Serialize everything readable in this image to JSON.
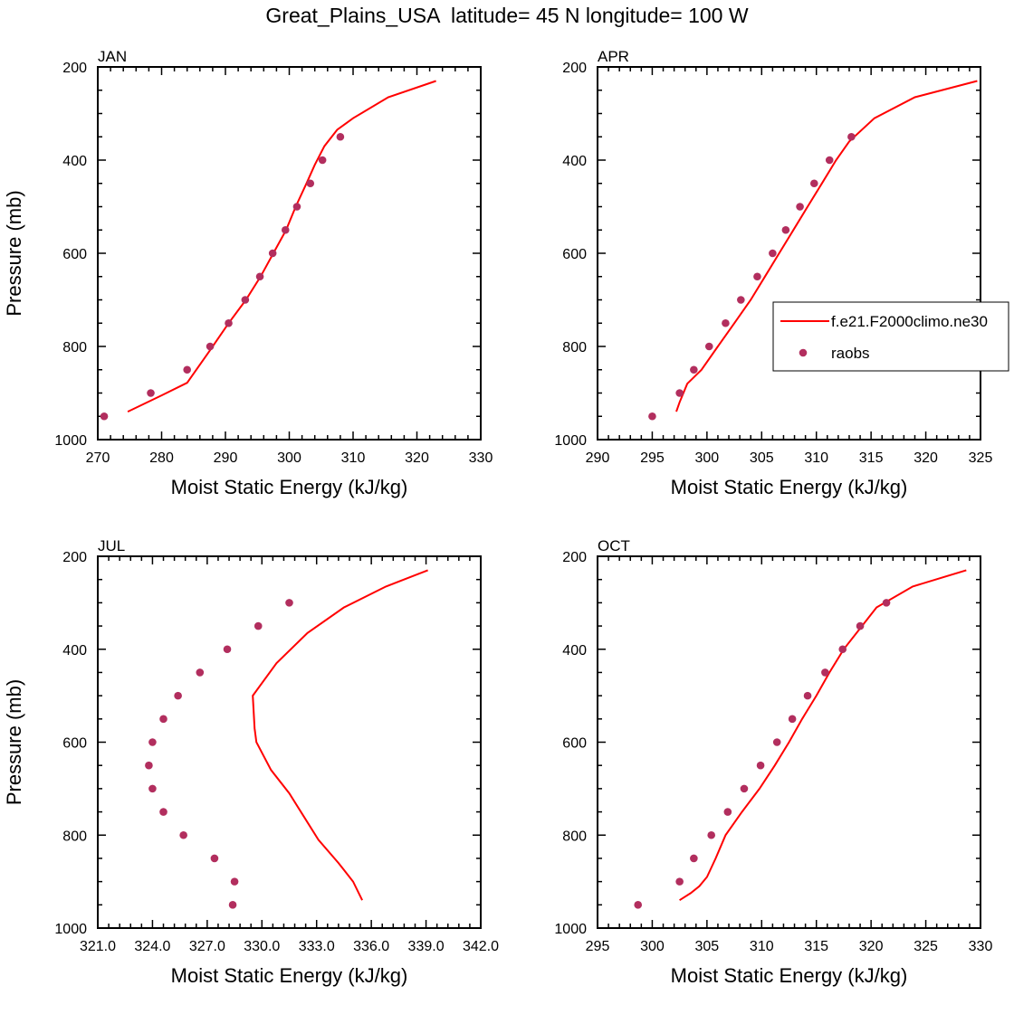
{
  "title": "Great_Plains_USA  latitude= 45 N longitude= 100 W",
  "colors": {
    "model_line": "#ff0000",
    "obs_marker": "#b22e5e",
    "axis": "#000000"
  },
  "legend": {
    "model_label": "f.e21.F2000climo.ne30",
    "obs_label": "raobs",
    "panel": "APR"
  },
  "chart_data": [
    {
      "type": "line",
      "panel": "JAN",
      "xlabel": "Moist Static Energy (kJ/kg)",
      "ylabel": "Pressure (mb)",
      "xlim": [
        270,
        330
      ],
      "ylim": [
        1000,
        200
      ],
      "xticks": [
        270,
        280,
        290,
        300,
        310,
        320,
        330
      ],
      "xtick_labels": [
        "270",
        "280",
        "290",
        "300",
        "310",
        "320",
        "330"
      ],
      "yticks": [
        200,
        400,
        600,
        800,
        1000
      ],
      "ytick_labels": [
        "200",
        "400",
        "600",
        "800",
        "1000"
      ],
      "series": [
        {
          "name": "f.e21.F2000climo.ne30",
          "kind": "line",
          "points": [
            [
              274.7,
              940
            ],
            [
              280,
              905
            ],
            [
              284,
              878
            ],
            [
              287.5,
              810
            ],
            [
              290.5,
              750
            ],
            [
              293.2,
              700
            ],
            [
              295.5,
              650
            ],
            [
              297.5,
              600
            ],
            [
              299.5,
              550
            ],
            [
              301,
              500
            ],
            [
              302.7,
              450
            ],
            [
              304,
              410
            ],
            [
              305.5,
              370
            ],
            [
              307.5,
              335
            ],
            [
              310,
              310
            ],
            [
              315.5,
              265
            ],
            [
              323,
              230
            ]
          ]
        },
        {
          "name": "raobs",
          "kind": "scatter",
          "points": [
            [
              271,
              950
            ],
            [
              278.3,
              900
            ],
            [
              284,
              850
            ],
            [
              287.6,
              800
            ],
            [
              290.5,
              750
            ],
            [
              293.1,
              700
            ],
            [
              295.4,
              650
            ],
            [
              297.4,
              600
            ],
            [
              299.4,
              550
            ],
            [
              301.2,
              500
            ],
            [
              303.3,
              450
            ],
            [
              305.2,
              400
            ],
            [
              308,
              350
            ]
          ]
        }
      ]
    },
    {
      "type": "line",
      "panel": "APR",
      "xlabel": "Moist Static Energy (kJ/kg)",
      "ylabel": "",
      "xlim": [
        290,
        325
      ],
      "ylim": [
        1000,
        200
      ],
      "xticks": [
        290,
        295,
        300,
        305,
        310,
        315,
        320,
        325
      ],
      "xtick_labels": [
        "290",
        "295",
        "300",
        "305",
        "310",
        "315",
        "320",
        "325"
      ],
      "yticks": [
        200,
        400,
        600,
        800,
        1000
      ],
      "ytick_labels": [
        "200",
        "400",
        "600",
        "800",
        "1000"
      ],
      "series": [
        {
          "name": "f.e21.F2000climo.ne30",
          "kind": "line",
          "points": [
            [
              297.2,
              940
            ],
            [
              297.5,
              920
            ],
            [
              298.2,
              880
            ],
            [
              299.5,
              850
            ],
            [
              301,
              800
            ],
            [
              302.5,
              750
            ],
            [
              304,
              700
            ],
            [
              305.3,
              650
            ],
            [
              306.6,
              600
            ],
            [
              307.9,
              550
            ],
            [
              309.2,
              500
            ],
            [
              310.5,
              450
            ],
            [
              311.8,
              400
            ],
            [
              313,
              360
            ],
            [
              315.3,
              310
            ],
            [
              319,
              265
            ],
            [
              324.7,
              230
            ]
          ]
        },
        {
          "name": "raobs",
          "kind": "scatter",
          "points": [
            [
              295,
              950
            ],
            [
              297.5,
              900
            ],
            [
              298.8,
              850
            ],
            [
              300.2,
              800
            ],
            [
              301.7,
              750
            ],
            [
              303.1,
              700
            ],
            [
              304.6,
              650
            ],
            [
              306,
              600
            ],
            [
              307.2,
              550
            ],
            [
              308.5,
              500
            ],
            [
              309.8,
              450
            ],
            [
              311.2,
              400
            ],
            [
              313.2,
              350
            ]
          ]
        }
      ]
    },
    {
      "type": "line",
      "panel": "JUL",
      "xlabel": "Moist Static Energy (kJ/kg)",
      "ylabel": "Pressure (mb)",
      "xlim": [
        321.0,
        342.0
      ],
      "ylim": [
        1000,
        200
      ],
      "xticks": [
        321,
        324,
        327,
        330,
        333,
        336,
        339,
        342
      ],
      "xtick_labels": [
        "321.0",
        "324.0",
        "327.0",
        "330.0",
        "333.0",
        "336.0",
        "339.0",
        "342.0"
      ],
      "yticks": [
        200,
        400,
        600,
        800,
        1000
      ],
      "ytick_labels": [
        "200",
        "400",
        "600",
        "800",
        "1000"
      ],
      "series": [
        {
          "name": "f.e21.F2000climo.ne30",
          "kind": "line",
          "points": [
            [
              335.5,
              940
            ],
            [
              335,
              900
            ],
            [
              334.2,
              860
            ],
            [
              333.1,
              810
            ],
            [
              332.3,
              760
            ],
            [
              331.5,
              710
            ],
            [
              330.5,
              660
            ],
            [
              329.7,
              600
            ],
            [
              329.6,
              570
            ],
            [
              329.5,
              500
            ],
            [
              330.8,
              430
            ],
            [
              332.5,
              365
            ],
            [
              334.5,
              310
            ],
            [
              336.8,
              265
            ],
            [
              339.1,
              230
            ]
          ]
        },
        {
          "name": "raobs",
          "kind": "scatter",
          "points": [
            [
              328.4,
              950
            ],
            [
              328.5,
              900
            ],
            [
              327.4,
              850
            ],
            [
              325.7,
              800
            ],
            [
              324.6,
              750
            ],
            [
              324,
              700
            ],
            [
              323.8,
              650
            ],
            [
              324,
              600
            ],
            [
              324.6,
              550
            ],
            [
              325.4,
              500
            ],
            [
              326.6,
              450
            ],
            [
              328.1,
              400
            ],
            [
              329.8,
              350
            ],
            [
              331.5,
              300
            ]
          ]
        }
      ]
    },
    {
      "type": "line",
      "panel": "OCT",
      "xlabel": "Moist Static Energy (kJ/kg)",
      "ylabel": "",
      "xlim": [
        295,
        330
      ],
      "ylim": [
        1000,
        200
      ],
      "xticks": [
        295,
        300,
        305,
        310,
        315,
        320,
        325,
        330
      ],
      "xtick_labels": [
        "295",
        "300",
        "305",
        "310",
        "315",
        "320",
        "325",
        "330"
      ],
      "yticks": [
        200,
        400,
        600,
        800,
        1000
      ],
      "ytick_labels": [
        "200",
        "400",
        "600",
        "800",
        "1000"
      ],
      "series": [
        {
          "name": "f.e21.F2000climo.ne30",
          "kind": "line",
          "points": [
            [
              302.5,
              940
            ],
            [
              303.5,
              925
            ],
            [
              304.3,
              910
            ],
            [
              305,
              890
            ],
            [
              305.8,
              850
            ],
            [
              306.7,
              800
            ],
            [
              308.2,
              750
            ],
            [
              309.8,
              700
            ],
            [
              311.2,
              650
            ],
            [
              312.5,
              600
            ],
            [
              313.7,
              550
            ],
            [
              315,
              500
            ],
            [
              316.2,
              450
            ],
            [
              317.5,
              400
            ],
            [
              319,
              355
            ],
            [
              320.5,
              310
            ],
            [
              323.8,
              265
            ],
            [
              328.7,
              230
            ]
          ]
        },
        {
          "name": "raobs",
          "kind": "scatter",
          "points": [
            [
              298.7,
              950
            ],
            [
              302.5,
              900
            ],
            [
              303.8,
              850
            ],
            [
              305.4,
              800
            ],
            [
              306.9,
              750
            ],
            [
              308.4,
              700
            ],
            [
              309.9,
              650
            ],
            [
              311.4,
              600
            ],
            [
              312.8,
              550
            ],
            [
              314.2,
              500
            ],
            [
              315.8,
              450
            ],
            [
              317.4,
              400
            ],
            [
              319,
              350
            ],
            [
              321.4,
              300
            ]
          ]
        }
      ]
    }
  ]
}
